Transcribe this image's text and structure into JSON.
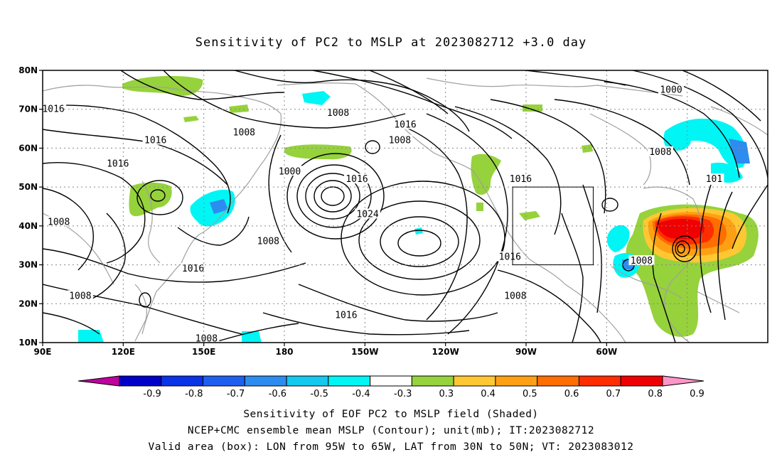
{
  "title": "Sensitivity of PC2 to MSLP at 2023082712 +3.0 day",
  "captions": [
    "Sensitivity of EOF PC2 to MSLP field (Shaded)",
    "NCEP+CMC ensemble mean MSLP (Contour); unit(mb); IT:2023082712",
    "Valid area (box): LON from 95W to 65W, LAT from 30N to 50N; VT: 2023083012"
  ],
  "lat_ticks": [
    "80N",
    "70N",
    "60N",
    "50N",
    "40N",
    "30N",
    "20N",
    "10N"
  ],
  "lon_ticks": [
    "90E",
    "120E",
    "150E",
    "180",
    "150W",
    "120W",
    "90W",
    "60W"
  ],
  "colorbar": {
    "labels": [
      "-0.9",
      "-0.8",
      "-0.7",
      "-0.6",
      "-0.5",
      "-0.4",
      "-0.3",
      "0.3",
      "0.4",
      "0.5",
      "0.6",
      "0.7",
      "0.8",
      "0.9"
    ],
    "colors": [
      "#c0009f",
      "#0000c8",
      "#0a32e6",
      "#1e5ff0",
      "#2d8cf0",
      "#14c8f0",
      "#00f5f5",
      "#ffffff",
      "#96d23c",
      "#ffc832",
      "#ffa014",
      "#ff6e00",
      "#ff2d00",
      "#f00000",
      "#ff96c8"
    ]
  },
  "contour_labels": [
    {
      "text": "1016",
      "lon": 94,
      "lat": 70
    },
    {
      "text": "1008",
      "lon": 165,
      "lat": 64
    },
    {
      "text": "1008",
      "lon": 200,
      "lat": 69
    },
    {
      "text": "1016",
      "lon": 225,
      "lat": 66
    },
    {
      "text": "1000",
      "lon": 324,
      "lat": 75
    },
    {
      "text": "1016",
      "lon": 132,
      "lat": 62
    },
    {
      "text": "1008",
      "lon": 223,
      "lat": 62
    },
    {
      "text": "1008",
      "lon": 320,
      "lat": 59
    },
    {
      "text": "1016",
      "lon": 118,
      "lat": 56
    },
    {
      "text": "1000",
      "lon": 182,
      "lat": 54
    },
    {
      "text": "1016",
      "lon": 207,
      "lat": 52
    },
    {
      "text": "1016",
      "lon": 268,
      "lat": 52
    },
    {
      "text": "101",
      "lon": 340,
      "lat": 52
    },
    {
      "text": "1008",
      "lon": 96,
      "lat": 41
    },
    {
      "text": "1024",
      "lon": 211,
      "lat": 43
    },
    {
      "text": "1008",
      "lon": 174,
      "lat": 36
    },
    {
      "text": "1016",
      "lon": 264,
      "lat": 32
    },
    {
      "text": "1008",
      "lon": 313,
      "lat": 31
    },
    {
      "text": "1016",
      "lon": 146,
      "lat": 29
    },
    {
      "text": "1008",
      "lon": 104,
      "lat": 22
    },
    {
      "text": "1008",
      "lon": 266,
      "lat": 22
    },
    {
      "text": "1016",
      "lon": 203,
      "lat": 17
    },
    {
      "text": "1008",
      "lon": 151,
      "lat": 11
    }
  ],
  "valid_box": {
    "lon_min": 265,
    "lon_max": 295,
    "lat_min": 30,
    "lat_max": 50
  }
}
